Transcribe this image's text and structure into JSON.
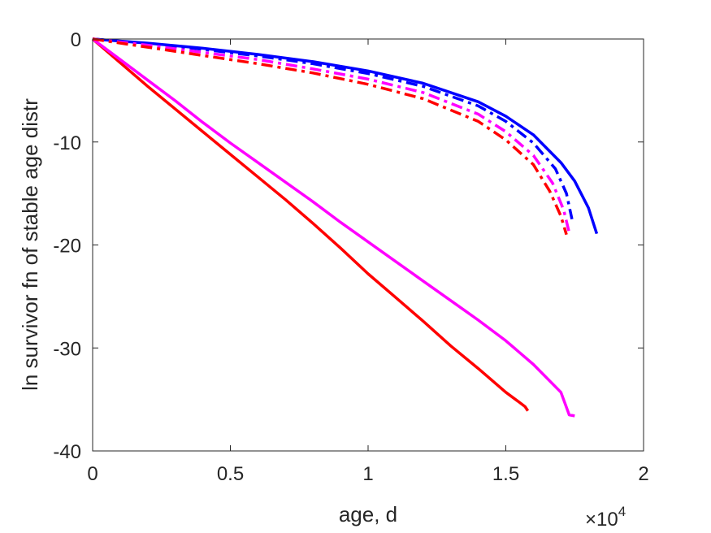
{
  "chart_data": {
    "type": "line",
    "title": "",
    "xlabel": "age, d",
    "ylabel": "ln survivor fn of stable age distr",
    "xlim": [
      0,
      2
    ],
    "ylim": [
      -40,
      0
    ],
    "x_ticks": [
      0,
      0.5,
      1,
      1.5,
      2
    ],
    "x_tick_labels": [
      "0",
      "0.5",
      "1",
      "1.5",
      "2"
    ],
    "y_ticks": [
      0,
      -10,
      -20,
      -30,
      -40
    ],
    "y_tick_labels": [
      "0",
      "-10",
      "-20",
      "-30",
      "-40"
    ],
    "x_exponent_label": "×10",
    "x_exponent_power": "4",
    "grid": false,
    "series": [
      {
        "color": "#ff0000",
        "style": "solid",
        "x": [
          0,
          0.1,
          0.2,
          0.3,
          0.4,
          0.5,
          0.6,
          0.7,
          0.8,
          0.9,
          1.0,
          1.1,
          1.2,
          1.3,
          1.4,
          1.5,
          1.55,
          1.57,
          1.58
        ],
        "y": [
          0,
          -2.3,
          -4.6,
          -6.8,
          -9.0,
          -11.2,
          -13.4,
          -15.6,
          -17.9,
          -20.3,
          -22.8,
          -25.1,
          -27.4,
          -29.8,
          -32.0,
          -34.3,
          -35.3,
          -35.7,
          -36.1
        ]
      },
      {
        "color": "#ff00ff",
        "style": "solid",
        "x": [
          0,
          0.1,
          0.2,
          0.3,
          0.4,
          0.5,
          0.6,
          0.7,
          0.8,
          0.9,
          1.0,
          1.1,
          1.2,
          1.3,
          1.4,
          1.5,
          1.6,
          1.7,
          1.73,
          1.75
        ],
        "y": [
          0,
          -2.0,
          -4.0,
          -6.0,
          -8.1,
          -10.1,
          -12.0,
          -13.9,
          -15.8,
          -17.8,
          -19.7,
          -21.6,
          -23.5,
          -25.4,
          -27.3,
          -29.3,
          -31.6,
          -34.3,
          -36.5,
          -36.6
        ]
      },
      {
        "color": "#0000ff",
        "style": "solid",
        "x": [
          0,
          0.2,
          0.4,
          0.6,
          0.8,
          1.0,
          1.2,
          1.4,
          1.5,
          1.6,
          1.7,
          1.75,
          1.8,
          1.83
        ],
        "y": [
          0,
          -0.4,
          -0.9,
          -1.5,
          -2.2,
          -3.1,
          -4.3,
          -6.1,
          -7.5,
          -9.3,
          -12.0,
          -13.8,
          -16.4,
          -18.9
        ]
      },
      {
        "color": "#0000ff",
        "style": "dashdot",
        "x": [
          0,
          0.2,
          0.4,
          0.6,
          0.8,
          1.0,
          1.2,
          1.4,
          1.5,
          1.6,
          1.68,
          1.72,
          1.74
        ],
        "y": [
          0,
          -0.45,
          -1.0,
          -1.65,
          -2.4,
          -3.35,
          -4.6,
          -6.5,
          -8.0,
          -10.1,
          -12.6,
          -15.0,
          -17.5
        ]
      },
      {
        "color": "#ff00ff",
        "style": "dashdot",
        "x": [
          0,
          0.2,
          0.4,
          0.6,
          0.8,
          1.0,
          1.2,
          1.4,
          1.5,
          1.6,
          1.67,
          1.71,
          1.73
        ],
        "y": [
          0,
          -0.6,
          -1.3,
          -2.0,
          -2.9,
          -3.9,
          -5.2,
          -7.3,
          -9.0,
          -11.3,
          -14.0,
          -16.6,
          -18.8
        ]
      },
      {
        "color": "#ff0000",
        "style": "dashdot",
        "x": [
          0,
          0.2,
          0.4,
          0.6,
          0.8,
          1.0,
          1.2,
          1.4,
          1.5,
          1.6,
          1.66,
          1.7,
          1.72
        ],
        "y": [
          0,
          -0.8,
          -1.6,
          -2.4,
          -3.3,
          -4.4,
          -5.8,
          -8.0,
          -9.8,
          -12.2,
          -14.8,
          -17.2,
          -19.0
        ]
      }
    ]
  }
}
